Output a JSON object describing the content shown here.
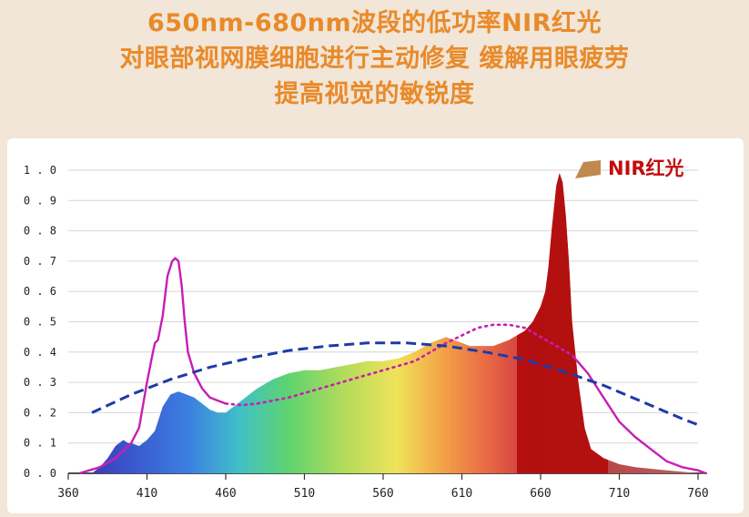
{
  "headline": {
    "line1": "650nm-680nm波段的低功率NIR红光",
    "line2": "对眼部视网膜细胞进行主动修复 缓解用眼疲劳",
    "line3": "提高视觉的敏锐度"
  },
  "chart_data": {
    "type": "area",
    "xlim": [
      360,
      770
    ],
    "ylim": [
      0,
      1.0
    ],
    "x_ticks": [
      "360",
      "410",
      "460",
      "510",
      "560",
      "610",
      "660",
      "710",
      "760"
    ],
    "y_ticks": [
      "0.0",
      "0.1",
      "0.2",
      "0.3",
      "0.4",
      "0.5",
      "0.6",
      "0.7",
      "0.8",
      "0.9",
      "1.0"
    ],
    "grid": "horizontal",
    "annotation": "NIR红光",
    "colors": {
      "spectrum_fill": "gradient violet-blue-green-yellow-orange-red",
      "magenta_curve": "#c81eb4",
      "dashed_curve": "#1f3aa8",
      "nir_peak": "#b20c0c",
      "annotation_arrow": "#c08a4e"
    },
    "series": [
      {
        "style": "filled-spectrum",
        "x": [
          375,
          380,
          385,
          390,
          395,
          398,
          400,
          405,
          410,
          415,
          420,
          425,
          430,
          435,
          440,
          445,
          450,
          455,
          460,
          465,
          470,
          475,
          480,
          490,
          500,
          510,
          520,
          530,
          540,
          550,
          560,
          570,
          580,
          590,
          595,
          600,
          605,
          610,
          615,
          620,
          630,
          640,
          650,
          655,
          660,
          663,
          665,
          667,
          670,
          672,
          674,
          676,
          678,
          680,
          684,
          688,
          692,
          700,
          710,
          720,
          730,
          740,
          750,
          760,
          770
        ],
        "values": [
          0.0,
          0.02,
          0.05,
          0.09,
          0.11,
          0.1,
          0.1,
          0.09,
          0.11,
          0.14,
          0.22,
          0.26,
          0.27,
          0.26,
          0.25,
          0.23,
          0.21,
          0.2,
          0.2,
          0.22,
          0.24,
          0.26,
          0.28,
          0.31,
          0.33,
          0.34,
          0.34,
          0.35,
          0.36,
          0.37,
          0.37,
          0.38,
          0.4,
          0.43,
          0.44,
          0.45,
          0.44,
          0.43,
          0.42,
          0.42,
          0.42,
          0.44,
          0.47,
          0.5,
          0.55,
          0.6,
          0.68,
          0.8,
          0.95,
          0.99,
          0.96,
          0.85,
          0.7,
          0.5,
          0.3,
          0.15,
          0.08,
          0.05,
          0.03,
          0.02,
          0.015,
          0.01,
          0.005,
          0.0,
          0.0
        ]
      },
      {
        "style": "magenta-solid",
        "x": [
          367,
          380,
          390,
          400,
          405,
          410,
          413,
          415,
          417,
          420,
          423,
          426,
          428,
          430,
          432,
          434,
          436,
          440,
          445,
          450,
          455,
          460,
          470,
          480,
          500,
          520,
          540,
          560,
          580,
          600,
          620,
          630,
          640,
          650,
          660,
          670,
          680,
          690,
          700,
          710,
          720,
          730,
          740,
          750,
          760,
          765
        ],
        "values": [
          0.0,
          0.02,
          0.05,
          0.1,
          0.15,
          0.3,
          0.38,
          0.43,
          0.44,
          0.52,
          0.65,
          0.7,
          0.71,
          0.7,
          0.62,
          0.5,
          0.4,
          0.33,
          0.28,
          0.25,
          0.24,
          0.23,
          0.225,
          0.23,
          0.25,
          0.28,
          0.31,
          0.34,
          0.37,
          0.43,
          0.48,
          0.49,
          0.49,
          0.48,
          0.45,
          0.42,
          0.39,
          0.33,
          0.25,
          0.17,
          0.12,
          0.08,
          0.04,
          0.02,
          0.01,
          0.0
        ]
      },
      {
        "style": "blue-dashed",
        "x": [
          375,
          400,
          425,
          450,
          475,
          500,
          525,
          550,
          575,
          600,
          625,
          650,
          675,
          700,
          725,
          750,
          760
        ],
        "values": [
          0.2,
          0.26,
          0.31,
          0.35,
          0.38,
          0.405,
          0.42,
          0.43,
          0.43,
          0.42,
          0.4,
          0.375,
          0.335,
          0.29,
          0.235,
          0.18,
          0.16
        ]
      }
    ]
  }
}
